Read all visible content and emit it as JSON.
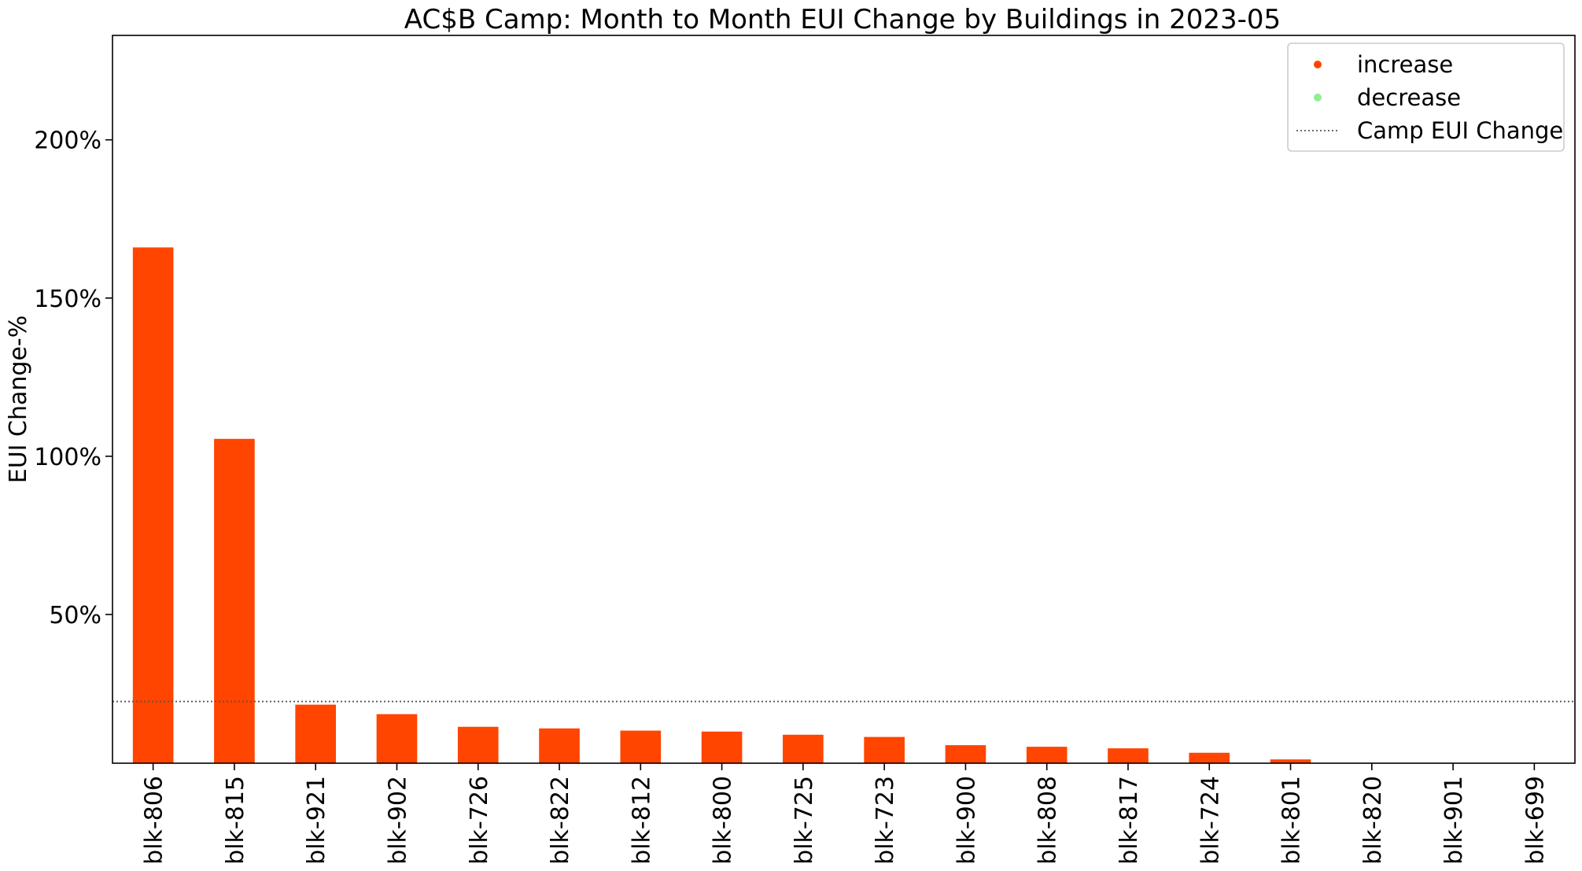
{
  "chart_data": {
    "type": "bar",
    "title": "AC$B Camp: Month to Month EUI Change by Buildings in 2023-05",
    "xlabel": "",
    "ylabel": "EUI Change-%",
    "categories": [
      "blk-806",
      "blk-815",
      "blk-921",
      "blk-902",
      "blk-726",
      "blk-822",
      "blk-812",
      "blk-800",
      "blk-725",
      "blk-723",
      "blk-900",
      "blk-808",
      "blk-817",
      "blk-724",
      "blk-801",
      "blk-820",
      "blk-901",
      "blk-699"
    ],
    "values": [
      166,
      105.5,
      21.5,
      18.5,
      14.5,
      14,
      13.3,
      13,
      12,
      11.3,
      8.7,
      8.2,
      7.7,
      6.3,
      4.2,
      2.4,
      0.7,
      0
    ],
    "ylim": [
      3,
      233
    ],
    "yticks": [
      50,
      100,
      150,
      200
    ],
    "ytick_labels": [
      "50%",
      "100%",
      "150%",
      "200%"
    ],
    "reference_line": {
      "label": "Camp EUI Change",
      "value": 22.5,
      "style": "dotted",
      "color": "#555555"
    },
    "legend": {
      "placement": "top-right",
      "entries": [
        {
          "label": "increase",
          "color": "#ff4500",
          "marker": "dot"
        },
        {
          "label": "decrease",
          "color": "#90ee90",
          "marker": "dot"
        },
        {
          "label": "Camp EUI Change",
          "color": "#555555",
          "marker": "dotted-line"
        }
      ]
    },
    "colors": {
      "increase": "#ff4500",
      "decrease": "#90ee90"
    },
    "grid": false
  }
}
